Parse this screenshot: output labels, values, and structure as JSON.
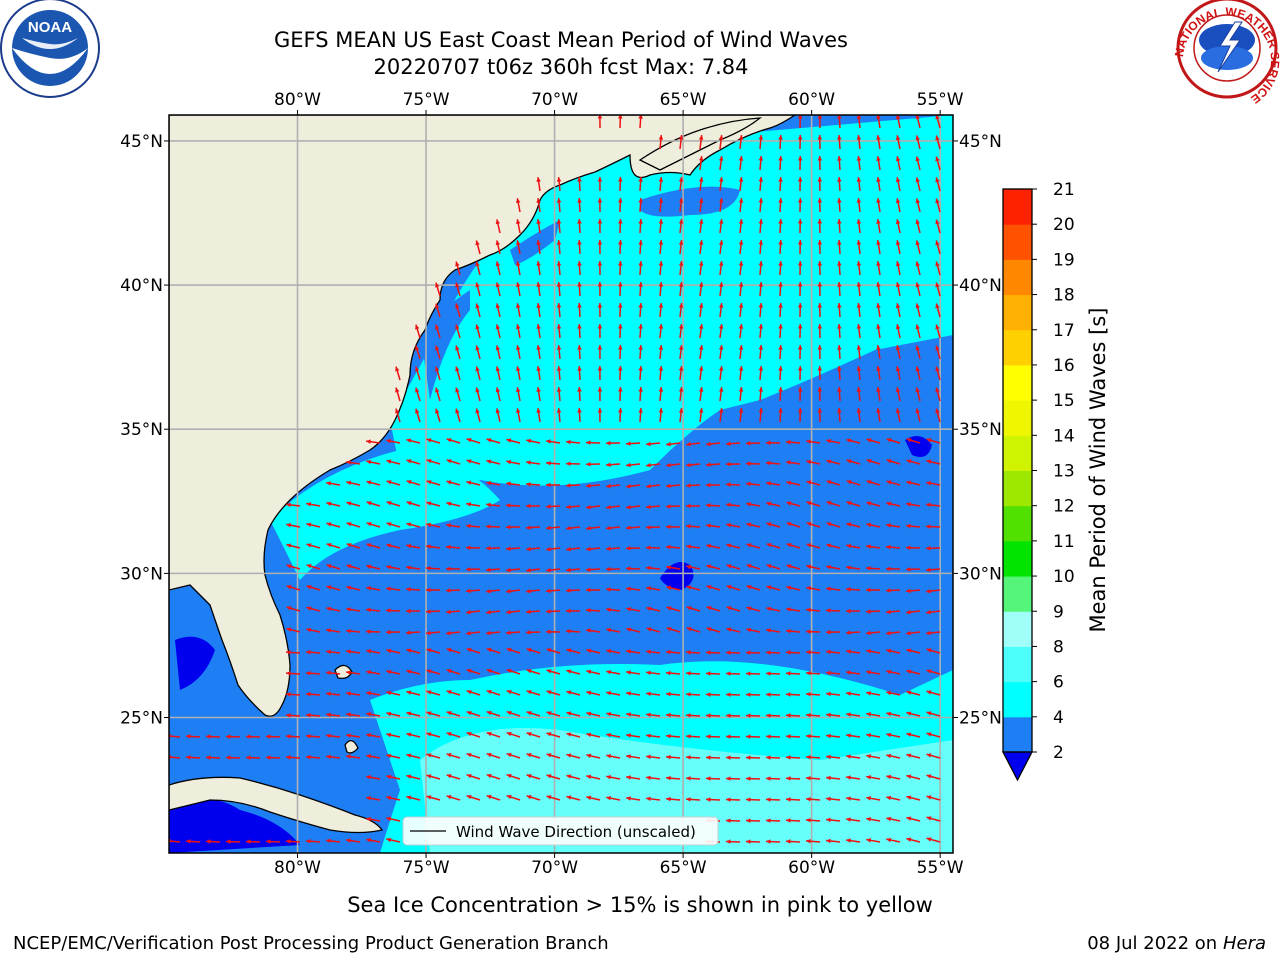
{
  "title": {
    "line1": "GEFS MEAN US East Coast Mean Period of Wind Waves",
    "line2": "20220707 t06z 360h fcst   Max: 7.84"
  },
  "map": {
    "lon_range": [
      -85,
      -54.5
    ],
    "lat_range": [
      20.3,
      45.9
    ],
    "gridlines": true,
    "lon_ticks": [
      {
        "lon": -80,
        "label": "80°W"
      },
      {
        "lon": -75,
        "label": "75°W"
      },
      {
        "lon": -70,
        "label": "70°W"
      },
      {
        "lon": -65,
        "label": "65°W"
      },
      {
        "lon": -60,
        "label": "60°W"
      },
      {
        "lon": -55,
        "label": "55°W"
      }
    ],
    "lat_ticks": [
      {
        "lat": 45,
        "label": "45°N"
      },
      {
        "lat": 40,
        "label": "40°N"
      },
      {
        "lat": 35,
        "label": "35°N"
      },
      {
        "lat": 30,
        "label": "30°N"
      },
      {
        "lat": 25,
        "label": "25°N"
      }
    ],
    "colors": {
      "land": "#efeddc",
      "ocean_2_4": "#1e7ff5",
      "ocean_4_6": "#00ffff",
      "ocean_6_8": "#66fffa",
      "ocean_lt_2": "#0000ee",
      "arrows": "#ee1111",
      "grid": "#b0b0b0"
    },
    "legend": {
      "label": "Wind Wave Direction (unscaled)",
      "position": "lower-center"
    }
  },
  "colorbar": {
    "label": "Mean Period of Wind Waves [s]",
    "ticks": [
      "2",
      "4",
      "6",
      "8",
      "9",
      "10",
      "11",
      "12",
      "13",
      "14",
      "15",
      "16",
      "17",
      "18",
      "19",
      "20",
      "21"
    ],
    "colors": [
      "#1e7ff5",
      "#00ffff",
      "#4dfffb",
      "#a0fff8",
      "#55f57a",
      "#00e400",
      "#52e000",
      "#9ee800",
      "#d0f400",
      "#eef700",
      "#ffff00",
      "#ffd000",
      "#ffb000",
      "#ff8800",
      "#ff5200",
      "#ff2200"
    ],
    "extend_color": "#0000ee"
  },
  "footer": {
    "note": "Sea Ice Concentration > 15% is shown in pink to yellow",
    "left": "NCEP/EMC/Verification Post Processing Product Generation Branch",
    "right_date": "08 Jul 2022 on ",
    "right_machine": "Hera"
  },
  "logos": {
    "left": {
      "text": "NOAA",
      "icon": "noaa-logo-icon"
    },
    "right": {
      "text": "NATIONAL WEATHER SERVICE",
      "icon": "nws-logo-icon"
    }
  }
}
